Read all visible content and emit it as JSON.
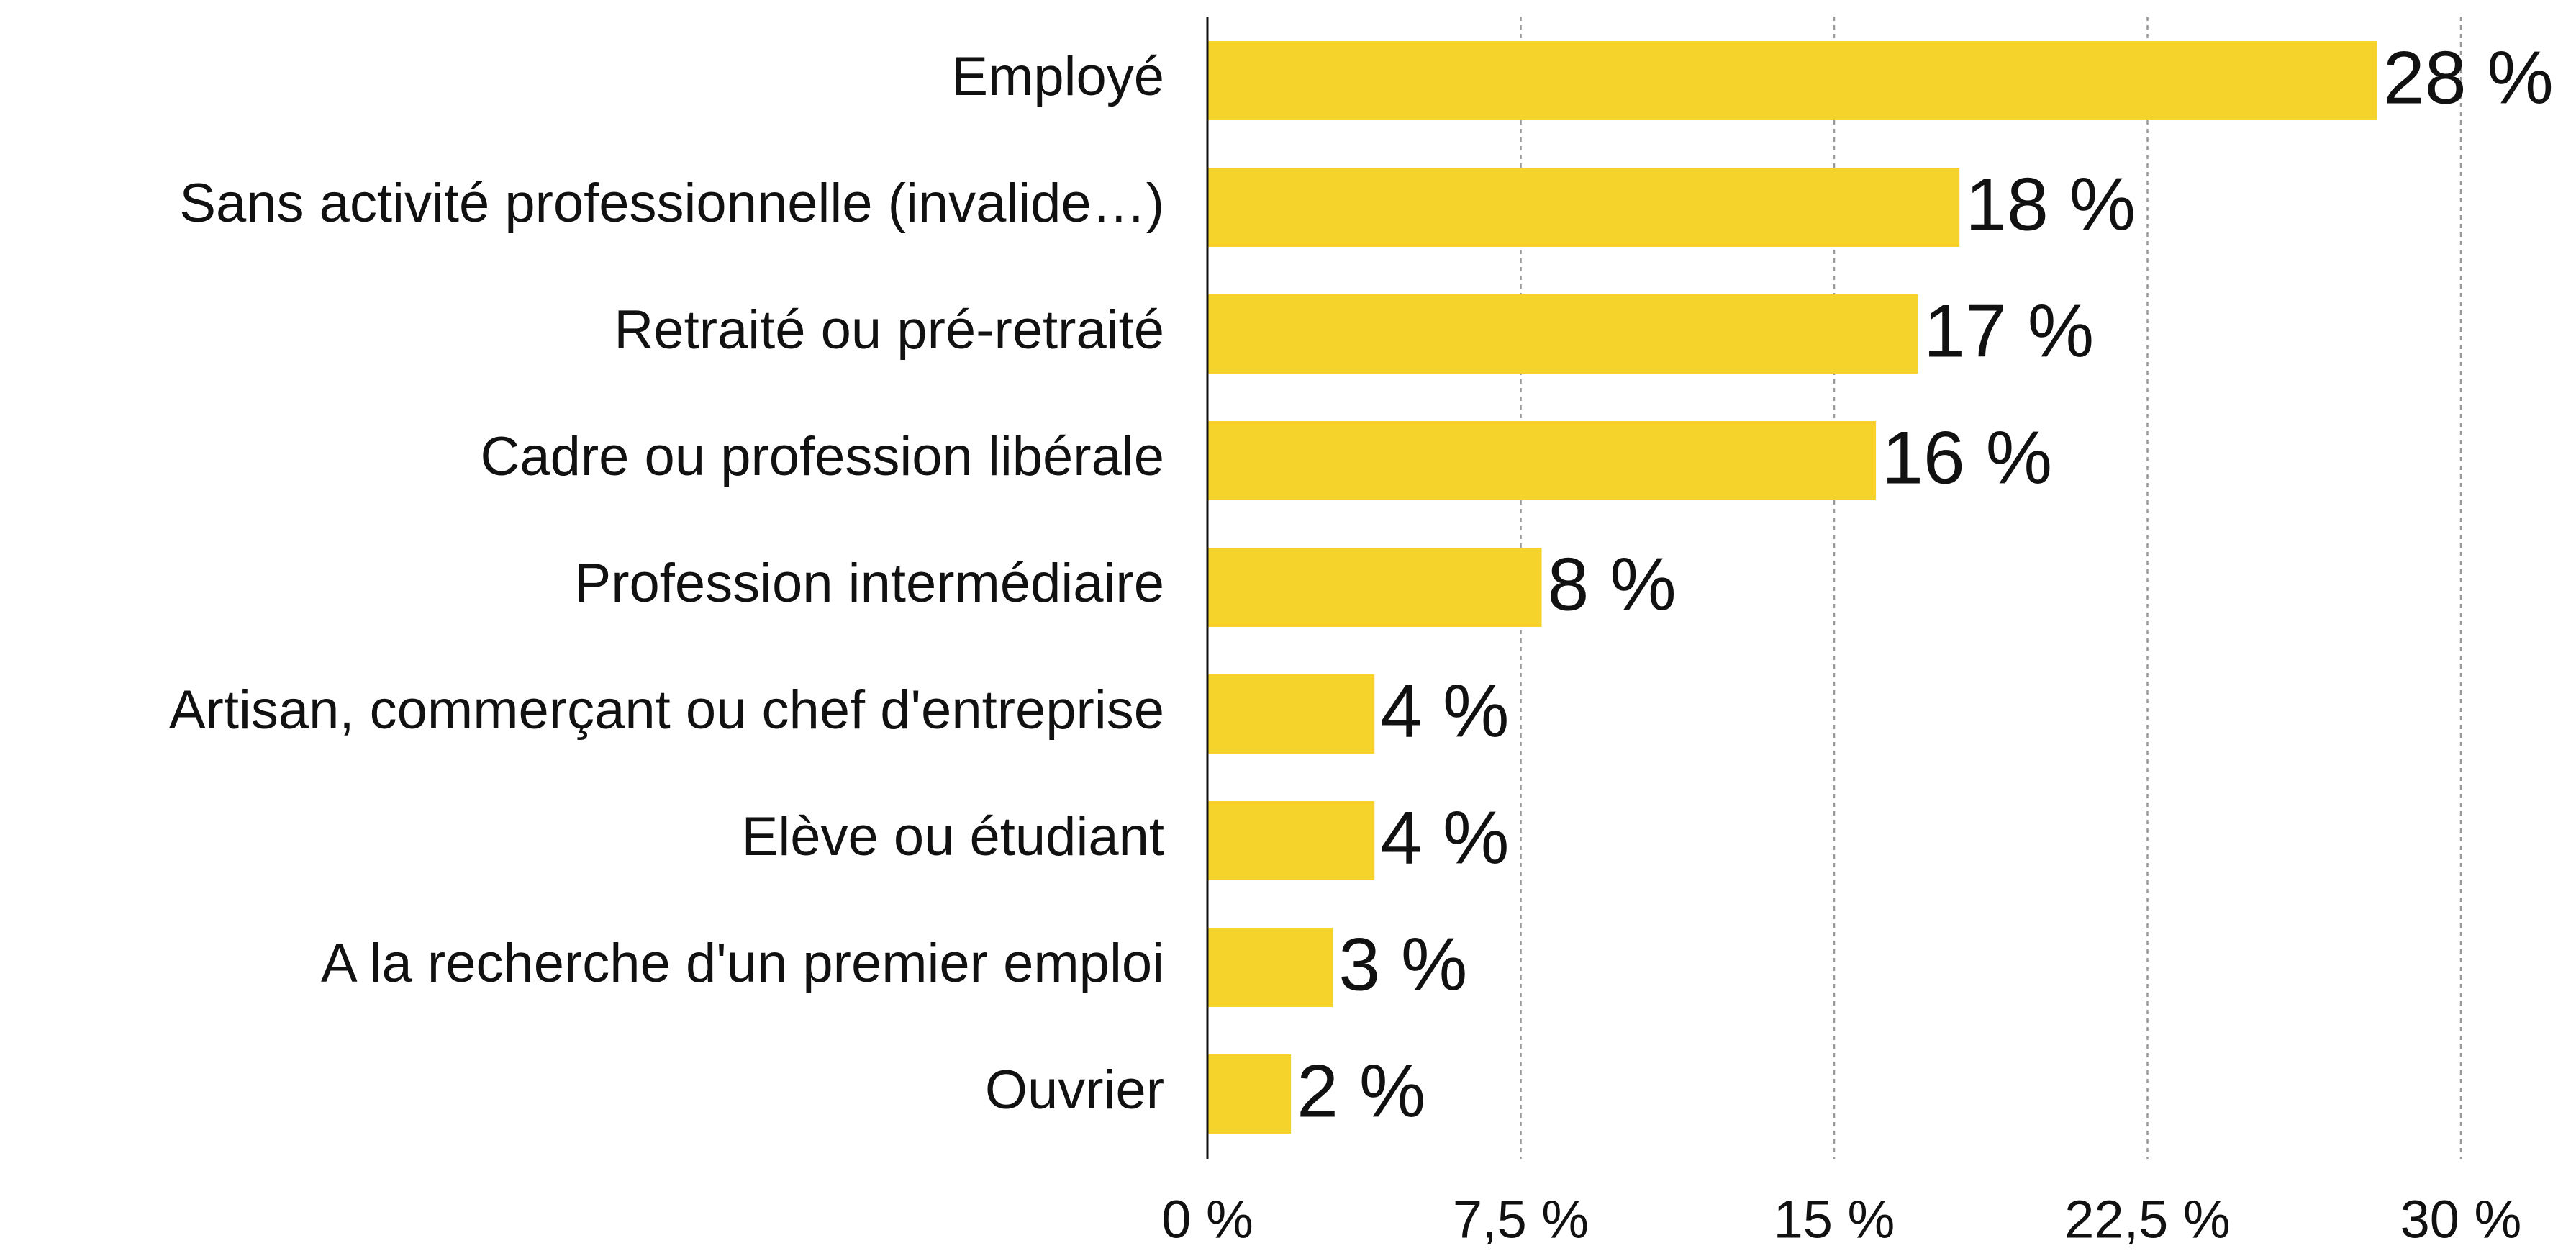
{
  "chart_data": {
    "type": "bar",
    "orientation": "horizontal",
    "categories": [
      "Employé",
      "Sans activité professionnelle (invalide…)",
      "Retraité ou pré-retraité",
      "Cadre ou profession libérale",
      "Profession intermédiaire",
      "Artisan, commerçant ou chef d'entreprise",
      "Elève ou étudiant",
      "A la recherche d'un premier emploi",
      "Ouvrier"
    ],
    "values": [
      28,
      18,
      17,
      16,
      8,
      4,
      4,
      3,
      2
    ],
    "value_labels": [
      "28 %",
      "18 %",
      "17 %",
      "16 %",
      "8 %",
      "4 %",
      "4 %",
      "3 %",
      "2 %"
    ],
    "color": "#f5d32a",
    "xlim": [
      0,
      30
    ],
    "xticks": [
      {
        "value": 0,
        "label": "0 %"
      },
      {
        "value": 7.5,
        "label": "7,5 %"
      },
      {
        "value": 15,
        "label": "15 %"
      },
      {
        "value": 22.5,
        "label": "22,5 %"
      },
      {
        "value": 30,
        "label": "30 %"
      }
    ],
    "grid": true
  }
}
